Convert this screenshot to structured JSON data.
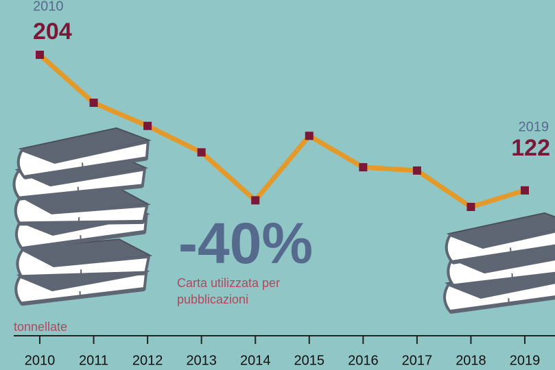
{
  "chart_data": {
    "type": "line",
    "categories": [
      "2010",
      "2011",
      "2012",
      "2013",
      "2014",
      "2015",
      "2016",
      "2017",
      "2018",
      "2019"
    ],
    "values": [
      204,
      175,
      161,
      145,
      116,
      155,
      136,
      134,
      112,
      122
    ],
    "color": "#e39a2b",
    "marker_color": "#7b1737",
    "headline": "-40%",
    "caption_lines": [
      "Carta utilizzata per",
      "pubblicazioni"
    ],
    "unit_label": "tonnellate"
  }
}
